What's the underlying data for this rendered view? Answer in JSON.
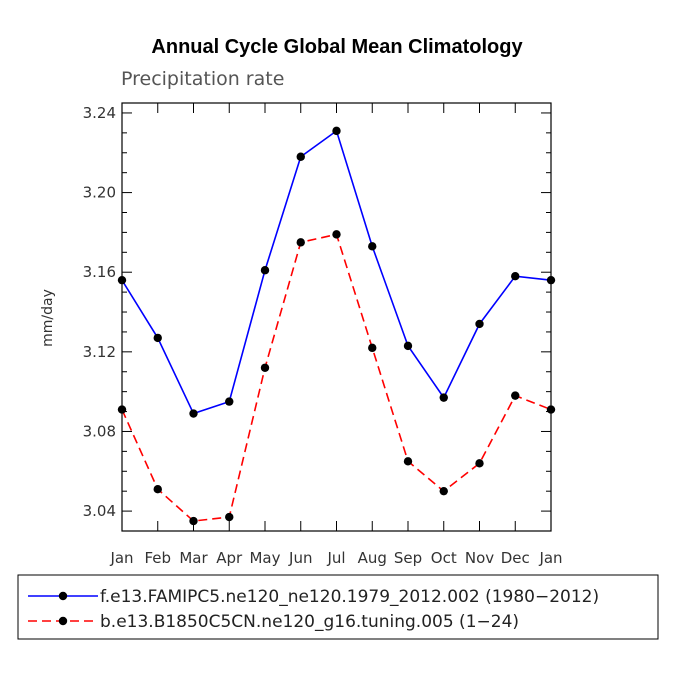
{
  "chart_data": {
    "type": "line",
    "title": "Annual Cycle Global Mean Climatology",
    "subtitle": "Precipitation rate",
    "xlabel": "",
    "ylabel": "mm/day",
    "categories": [
      "Jan",
      "Feb",
      "Mar",
      "Apr",
      "May",
      "Jun",
      "Jul",
      "Aug",
      "Sep",
      "Oct",
      "Nov",
      "Dec",
      "Jan"
    ],
    "ylim": [
      3.03,
      3.245
    ],
    "yticks": [
      "3.04",
      "3.08",
      "3.12",
      "3.16",
      "3.20",
      "3.24"
    ],
    "series": [
      {
        "name": "f.e13.FAMIPC5.ne120_ne120.1979_2012.002 (1980−2012)",
        "color": "#0000ff",
        "dash": "solid",
        "values": [
          3.156,
          3.127,
          3.089,
          3.095,
          3.161,
          3.218,
          3.231,
          3.173,
          3.123,
          3.097,
          3.134,
          3.158,
          3.156
        ]
      },
      {
        "name": "b.e13.B1850C5CN.ne120_g16.tuning.005 (1−24)",
        "color": "#ff0000",
        "dash": "dashed",
        "values": [
          3.091,
          3.051,
          3.035,
          3.037,
          3.112,
          3.175,
          3.179,
          3.122,
          3.065,
          3.05,
          3.064,
          3.098,
          3.091
        ]
      }
    ],
    "legend_position": "bottom"
  }
}
